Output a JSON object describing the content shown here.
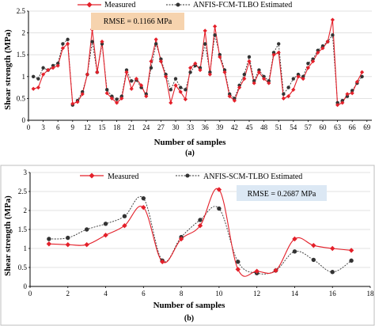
{
  "colors": {
    "measured": "#e4202a",
    "estimated": "#333333",
    "rmse_box_a": "#f6d3ae",
    "rmse_box_b": "#dce8f4",
    "grid": "#d9d9d9"
  },
  "chart_data": [
    {
      "type": "line",
      "panel_label": "(a)",
      "xlabel": "Number of samples",
      "ylabel": "Shear strength (MPa)",
      "xlim": [
        0,
        70
      ],
      "ylim": [
        0,
        2.5
      ],
      "xticks": [
        "0",
        "3",
        "6",
        "9",
        "12",
        "15",
        "18",
        "21",
        "24",
        "27",
        "30",
        "33",
        "36",
        "39",
        "42",
        "45",
        "48",
        "51",
        "54",
        "57",
        "60",
        "63",
        "66",
        "69"
      ],
      "yticks": [
        "0",
        "0.5",
        "1",
        "1.5",
        "2",
        "2.5"
      ],
      "grid": "horizontal",
      "legend": [
        "Measured",
        "ANFIS-FCM-TLBO Estimated"
      ],
      "legend_placement": "top",
      "annotation": "RMSE = 0.1166 MPa",
      "x": [
        1,
        2,
        3,
        4,
        5,
        6,
        7,
        8,
        9,
        10,
        11,
        12,
        13,
        14,
        15,
        16,
        17,
        18,
        19,
        20,
        21,
        22,
        23,
        24,
        25,
        26,
        27,
        28,
        29,
        30,
        31,
        32,
        33,
        34,
        35,
        36,
        37,
        38,
        39,
        40,
        41,
        42,
        43,
        44,
        45,
        46,
        47,
        48,
        49,
        50,
        51,
        52,
        53,
        54,
        55,
        56,
        57,
        58,
        59,
        60,
        61,
        62,
        63,
        64,
        65,
        66,
        67,
        68
      ],
      "series": [
        {
          "name": "Measured",
          "values": [
            0.72,
            0.75,
            1.05,
            1.15,
            1.2,
            1.25,
            1.65,
            1.75,
            0.38,
            0.42,
            0.6,
            1.05,
            2.08,
            1.1,
            1.8,
            0.62,
            0.5,
            0.4,
            0.5,
            1.1,
            0.72,
            0.95,
            0.8,
            0.55,
            1.35,
            1.85,
            1.35,
            1.0,
            0.4,
            0.8,
            0.65,
            0.48,
            1.2,
            1.3,
            1.15,
            2.05,
            1.05,
            2.15,
            1.45,
            1.1,
            0.55,
            0.45,
            0.75,
            0.95,
            1.35,
            0.85,
            1.1,
            0.95,
            0.85,
            1.5,
            1.55,
            0.5,
            0.55,
            0.7,
            1.0,
            0.95,
            1.2,
            1.35,
            1.55,
            1.65,
            1.8,
            2.3,
            0.35,
            0.4,
            0.6,
            0.62,
            0.88,
            1.1
          ],
          "color": "#e4202a"
        },
        {
          "name": "ANFIS-FCM-TLBO Estimated",
          "values": [
            1.0,
            0.95,
            1.2,
            1.15,
            1.25,
            1.3,
            1.75,
            1.85,
            0.35,
            0.45,
            0.65,
            1.05,
            1.8,
            1.1,
            1.75,
            0.7,
            0.55,
            0.48,
            0.55,
            1.15,
            0.9,
            0.92,
            0.75,
            0.6,
            1.2,
            1.75,
            1.4,
            1.05,
            0.7,
            0.95,
            0.75,
            0.7,
            1.1,
            1.25,
            1.2,
            1.75,
            1.1,
            1.95,
            1.5,
            1.15,
            0.6,
            0.5,
            0.8,
            1.05,
            1.45,
            0.9,
            1.15,
            1.0,
            0.9,
            1.55,
            1.75,
            0.6,
            0.75,
            0.95,
            1.05,
            1.0,
            1.3,
            1.4,
            1.6,
            1.7,
            1.8,
            1.95,
            0.4,
            0.45,
            0.55,
            0.68,
            0.85,
            1.0
          ],
          "color": "#333333"
        }
      ]
    },
    {
      "type": "line",
      "panel_label": "(b)",
      "xlabel": "Number of samples",
      "ylabel": "Shear strength (MPa)",
      "xlim": [
        0,
        18
      ],
      "ylim": [
        0,
        3
      ],
      "xticks": [
        "0",
        "2",
        "4",
        "6",
        "8",
        "10",
        "12",
        "14",
        "16",
        "18"
      ],
      "yticks": [
        "0",
        "0.5",
        "1",
        "1.5",
        "2",
        "2.5",
        "3"
      ],
      "grid": "horizontal",
      "legend": [
        "Measured",
        "ANFIS-SCM-TLBO Estimated"
      ],
      "legend_placement": "top",
      "annotation": "RMSE = 0.2687 MPa",
      "x": [
        1,
        2,
        3,
        4,
        5,
        6,
        7,
        8,
        9,
        10,
        11,
        12,
        13,
        14,
        15,
        16,
        17
      ],
      "series": [
        {
          "name": "Measured",
          "values": [
            1.12,
            1.1,
            1.1,
            1.35,
            1.6,
            2.08,
            0.65,
            1.25,
            1.6,
            2.55,
            0.45,
            0.4,
            0.42,
            1.25,
            1.08,
            1.0,
            0.95
          ],
          "color": "#e4202a"
        },
        {
          "name": "ANFIS-SCM-TLBO Estimated",
          "values": [
            1.25,
            1.28,
            1.5,
            1.65,
            1.85,
            2.32,
            0.68,
            1.3,
            1.75,
            2.05,
            0.65,
            0.35,
            0.42,
            0.92,
            0.7,
            0.38,
            0.68
          ],
          "color": "#333333"
        }
      ]
    }
  ]
}
